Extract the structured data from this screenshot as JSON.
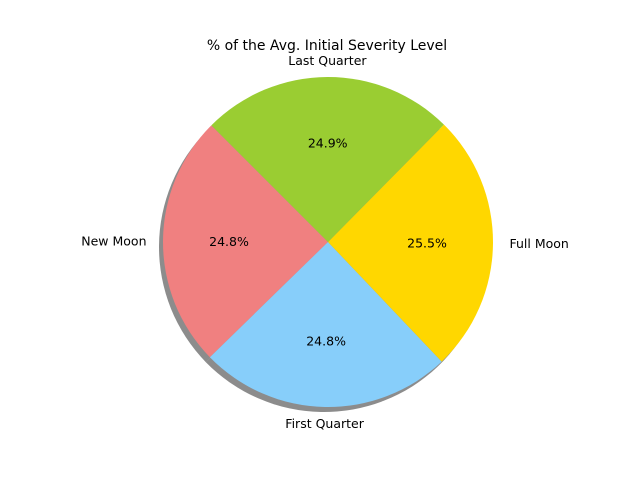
{
  "chart_data": {
    "type": "pie",
    "title": "% of the Avg. Initial Severity Level",
    "shadow": true,
    "start_angle_deg": 135,
    "direction": "counterclockwise",
    "slices": [
      {
        "label": "New Moon",
        "value": 24.8,
        "pct_label": "24.8%",
        "color": "#F08080"
      },
      {
        "label": "First Quarter",
        "value": 24.8,
        "pct_label": "24.8%",
        "color": "#87CEFA"
      },
      {
        "label": "Full Moon",
        "value": 25.5,
        "pct_label": "25.5%",
        "color": "#FFD700"
      },
      {
        "label": "Last Quarter",
        "value": 24.9,
        "pct_label": "24.9%",
        "color": "#9ACD32"
      }
    ]
  }
}
